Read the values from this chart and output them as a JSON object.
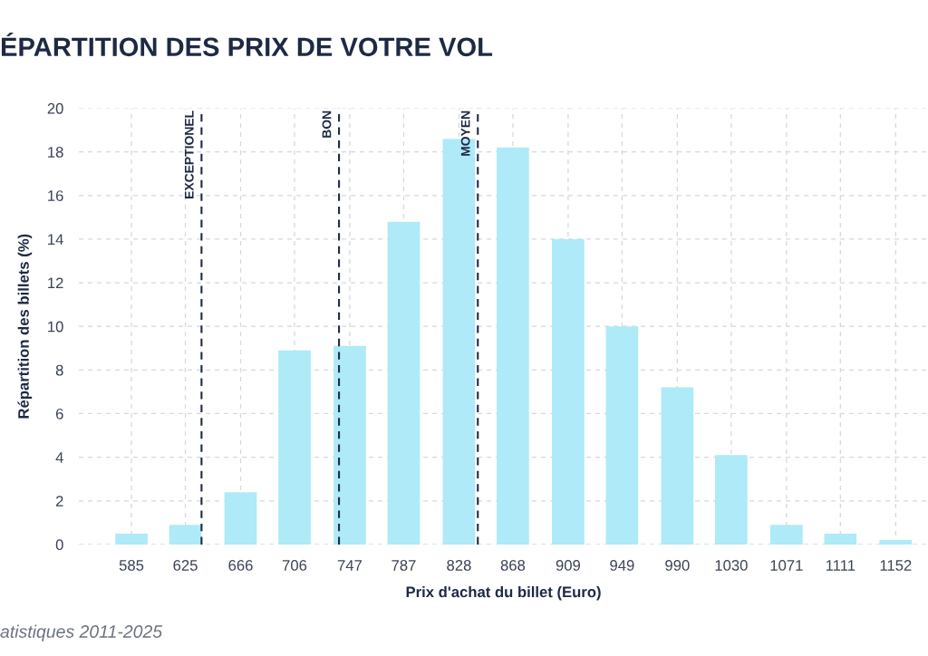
{
  "chart_data": {
    "type": "bar",
    "title": "ÉPARTITION DES PRIX DE VOTRE VOL",
    "xlabel": "Prix d'achat du billet (Euro)",
    "ylabel": "Répartition des billets (%)",
    "x": [
      585,
      625,
      666,
      706,
      747,
      787,
      828,
      868,
      909,
      949,
      990,
      1030,
      1071,
      1111,
      1152
    ],
    "series": [
      {
        "color": "#aeeaf7",
        "values": [
          0.5,
          0.9,
          2.4,
          8.9,
          9.1,
          14.8,
          18.6,
          18.2,
          14.0,
          10.0,
          7.2,
          4.1,
          0.9,
          0.5,
          0.2
        ]
      }
    ],
    "xlim": [
      546,
      1176
    ],
    "xticks": [
      585,
      625,
      666,
      706,
      747,
      787,
      828,
      868,
      909,
      949,
      990,
      1030,
      1071,
      1111,
      1152
    ],
    "ylim": [
      0,
      20
    ],
    "yticks": [
      0,
      2,
      4,
      6,
      8,
      10,
      12,
      14,
      16,
      18,
      20
    ],
    "grid": true,
    "ref_lines": [
      {
        "axis": "x",
        "value": 637,
        "label": "EXCEPTIONEL",
        "color": "#1e2a44",
        "line_style": "dashed"
      },
      {
        "axis": "x",
        "value": 739,
        "label": "BON",
        "color": "#1e2a44",
        "line_style": "dashed"
      },
      {
        "axis": "x",
        "value": 842,
        "label": "MOYEN",
        "color": "#1e2a44",
        "line_style": "dashed"
      }
    ],
    "annotations": [
      "atistiques 2011-2025"
    ]
  }
}
